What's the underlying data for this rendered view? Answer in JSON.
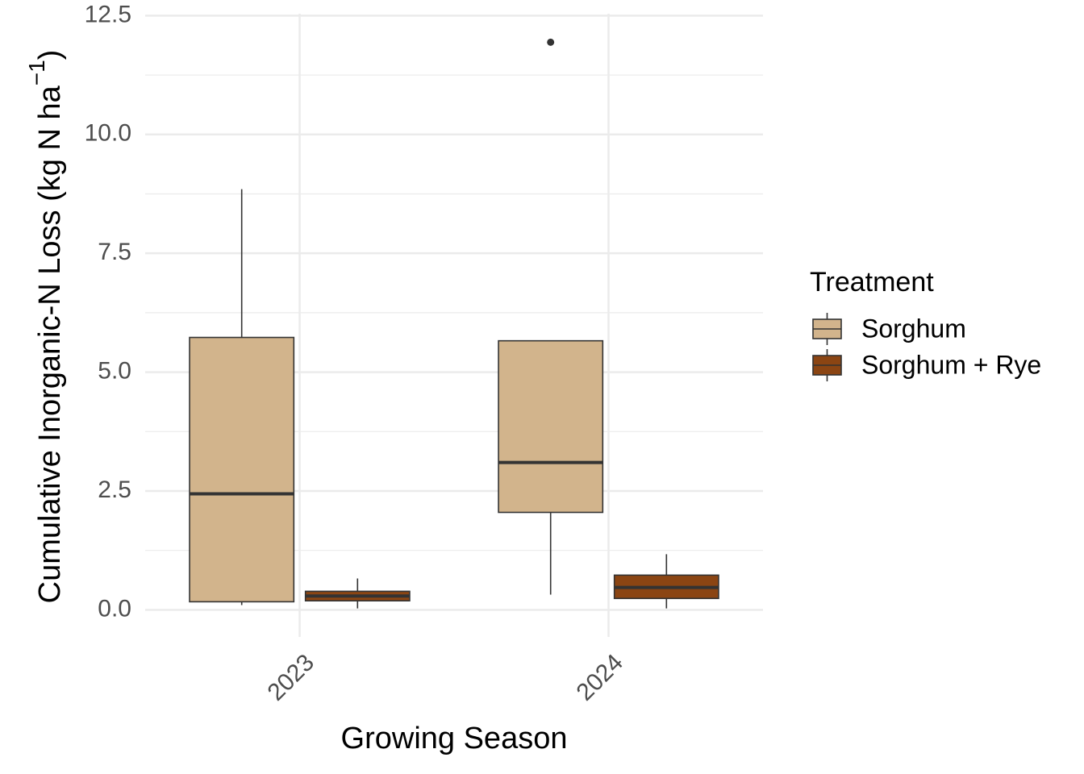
{
  "chart_data": {
    "type": "box",
    "x_label": "Growing Season",
    "y_label": {
      "text": "Cumulative Inorganic-N Loss (kg N ha",
      "superscript": "−1",
      "suffix": ")"
    },
    "categories": [
      "2023",
      "2024"
    ],
    "legend": {
      "title": "Treatment",
      "position": "right"
    },
    "series": [
      {
        "name": "Sorghum",
        "color": "#d2b48c",
        "whisker_low": [
          0.1,
          0.32
        ],
        "q1": [
          0.17,
          2.05
        ],
        "median": [
          2.44,
          3.1
        ],
        "q3": [
          5.73,
          5.66
        ],
        "whisker_high": [
          8.85,
          5.66
        ],
        "outliers": [
          [],
          [
            11.94
          ]
        ]
      },
      {
        "name": "Sorghum + Rye",
        "color": "#8b4513",
        "whisker_low": [
          0.03,
          0.03
        ],
        "q1": [
          0.19,
          0.24
        ],
        "median": [
          0.29,
          0.47
        ],
        "q3": [
          0.39,
          0.73
        ],
        "whisker_high": [
          0.66,
          1.17
        ],
        "outliers": [
          [],
          []
        ]
      }
    ],
    "ylim": [
      -0.57,
      12.54
    ],
    "yticks": [
      {
        "value": 0,
        "label": "0.0"
      },
      2.5,
      {
        "value": 5,
        "label": "5.0"
      },
      7.5,
      {
        "value": 10,
        "label": "10.0"
      },
      12.5
    ],
    "grid": true,
    "minor_grid": true
  }
}
